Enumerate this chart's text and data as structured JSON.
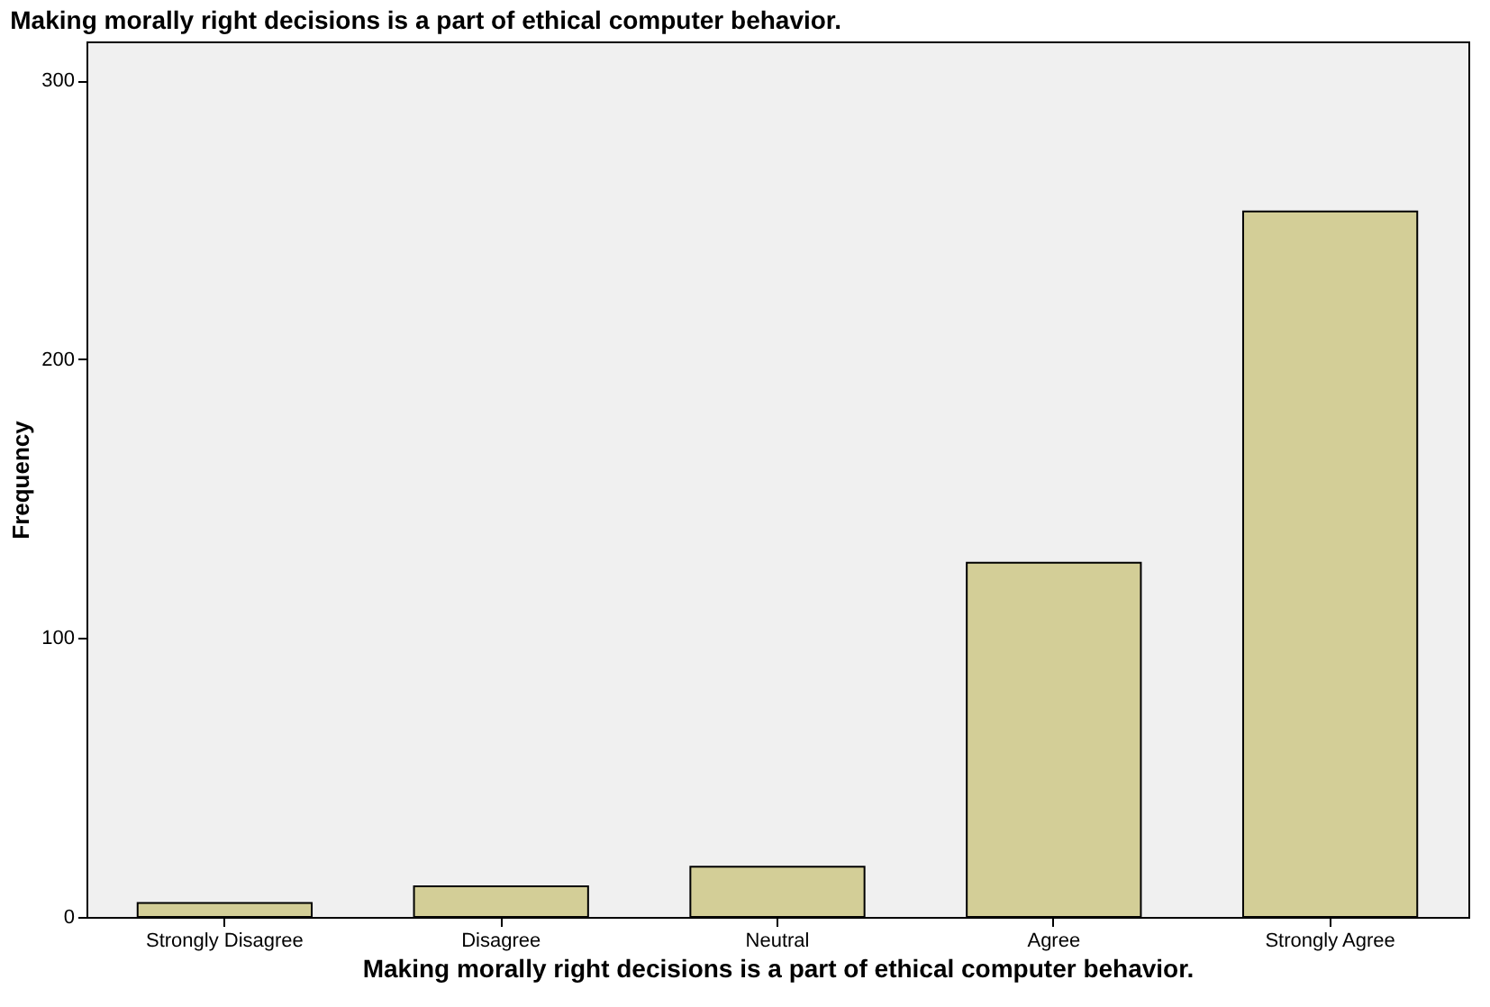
{
  "chart_data": {
    "type": "bar",
    "title": "Making morally right decisions is a part of ethical computer behavior.",
    "xlabel": "Making morally right decisions is a part of ethical computer behavior.",
    "ylabel": "Frequency",
    "categories": [
      "Strongly Disagree",
      "Disagree",
      "Neutral",
      "Agree",
      "Strongly Agree"
    ],
    "values": [
      5,
      11,
      18,
      127,
      253
    ],
    "color": "#d3ce97",
    "ylim": [
      0,
      314
    ],
    "yticks": [
      0,
      100,
      200,
      300
    ],
    "grid": false
  }
}
